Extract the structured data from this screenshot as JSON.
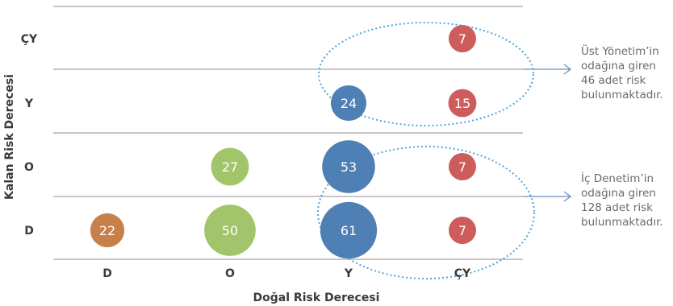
{
  "chart_data": {
    "type": "scatter",
    "xlabel": "Doğal Risk Derecesi",
    "ylabel": "Kalan Risk Derecesi",
    "x_categories": [
      "D",
      "O",
      "Y",
      "ÇY"
    ],
    "y_categories": [
      "D",
      "O",
      "Y",
      "ÇY"
    ],
    "grid": "horizontal",
    "points": [
      {
        "x": "D",
        "y": "D",
        "value": 22,
        "color": "#c8804a"
      },
      {
        "x": "O",
        "y": "D",
        "value": 50,
        "color": "#a2c56b"
      },
      {
        "x": "Y",
        "y": "D",
        "value": 61,
        "color": "#4e7fb5"
      },
      {
        "x": "ÇY",
        "y": "D",
        "value": 7,
        "color": "#cf5c5c"
      },
      {
        "x": "O",
        "y": "O",
        "value": 27,
        "color": "#a2c56b"
      },
      {
        "x": "Y",
        "y": "O",
        "value": 53,
        "color": "#4e7fb5"
      },
      {
        "x": "ÇY",
        "y": "O",
        "value": 7,
        "color": "#cf5c5c"
      },
      {
        "x": "Y",
        "y": "Y",
        "value": 24,
        "color": "#4e7fb5"
      },
      {
        "x": "ÇY",
        "y": "Y",
        "value": 15,
        "color": "#cf5c5c"
      },
      {
        "x": "ÇY",
        "y": "ÇY",
        "value": 7,
        "color": "#cf5c5c"
      }
    ],
    "annotations": [
      {
        "lines": [
          "Üst Yönetim’in",
          "odağına giren",
          "46 adet risk",
          "bulunmaktadır."
        ]
      },
      {
        "lines": [
          "İç Denetim’in",
          "odağına giren",
          "128 adet risk",
          "bulunmaktadır."
        ]
      }
    ],
    "ellipse_color": "#4fa6d9",
    "arrow_color": "#6a8fc0"
  }
}
